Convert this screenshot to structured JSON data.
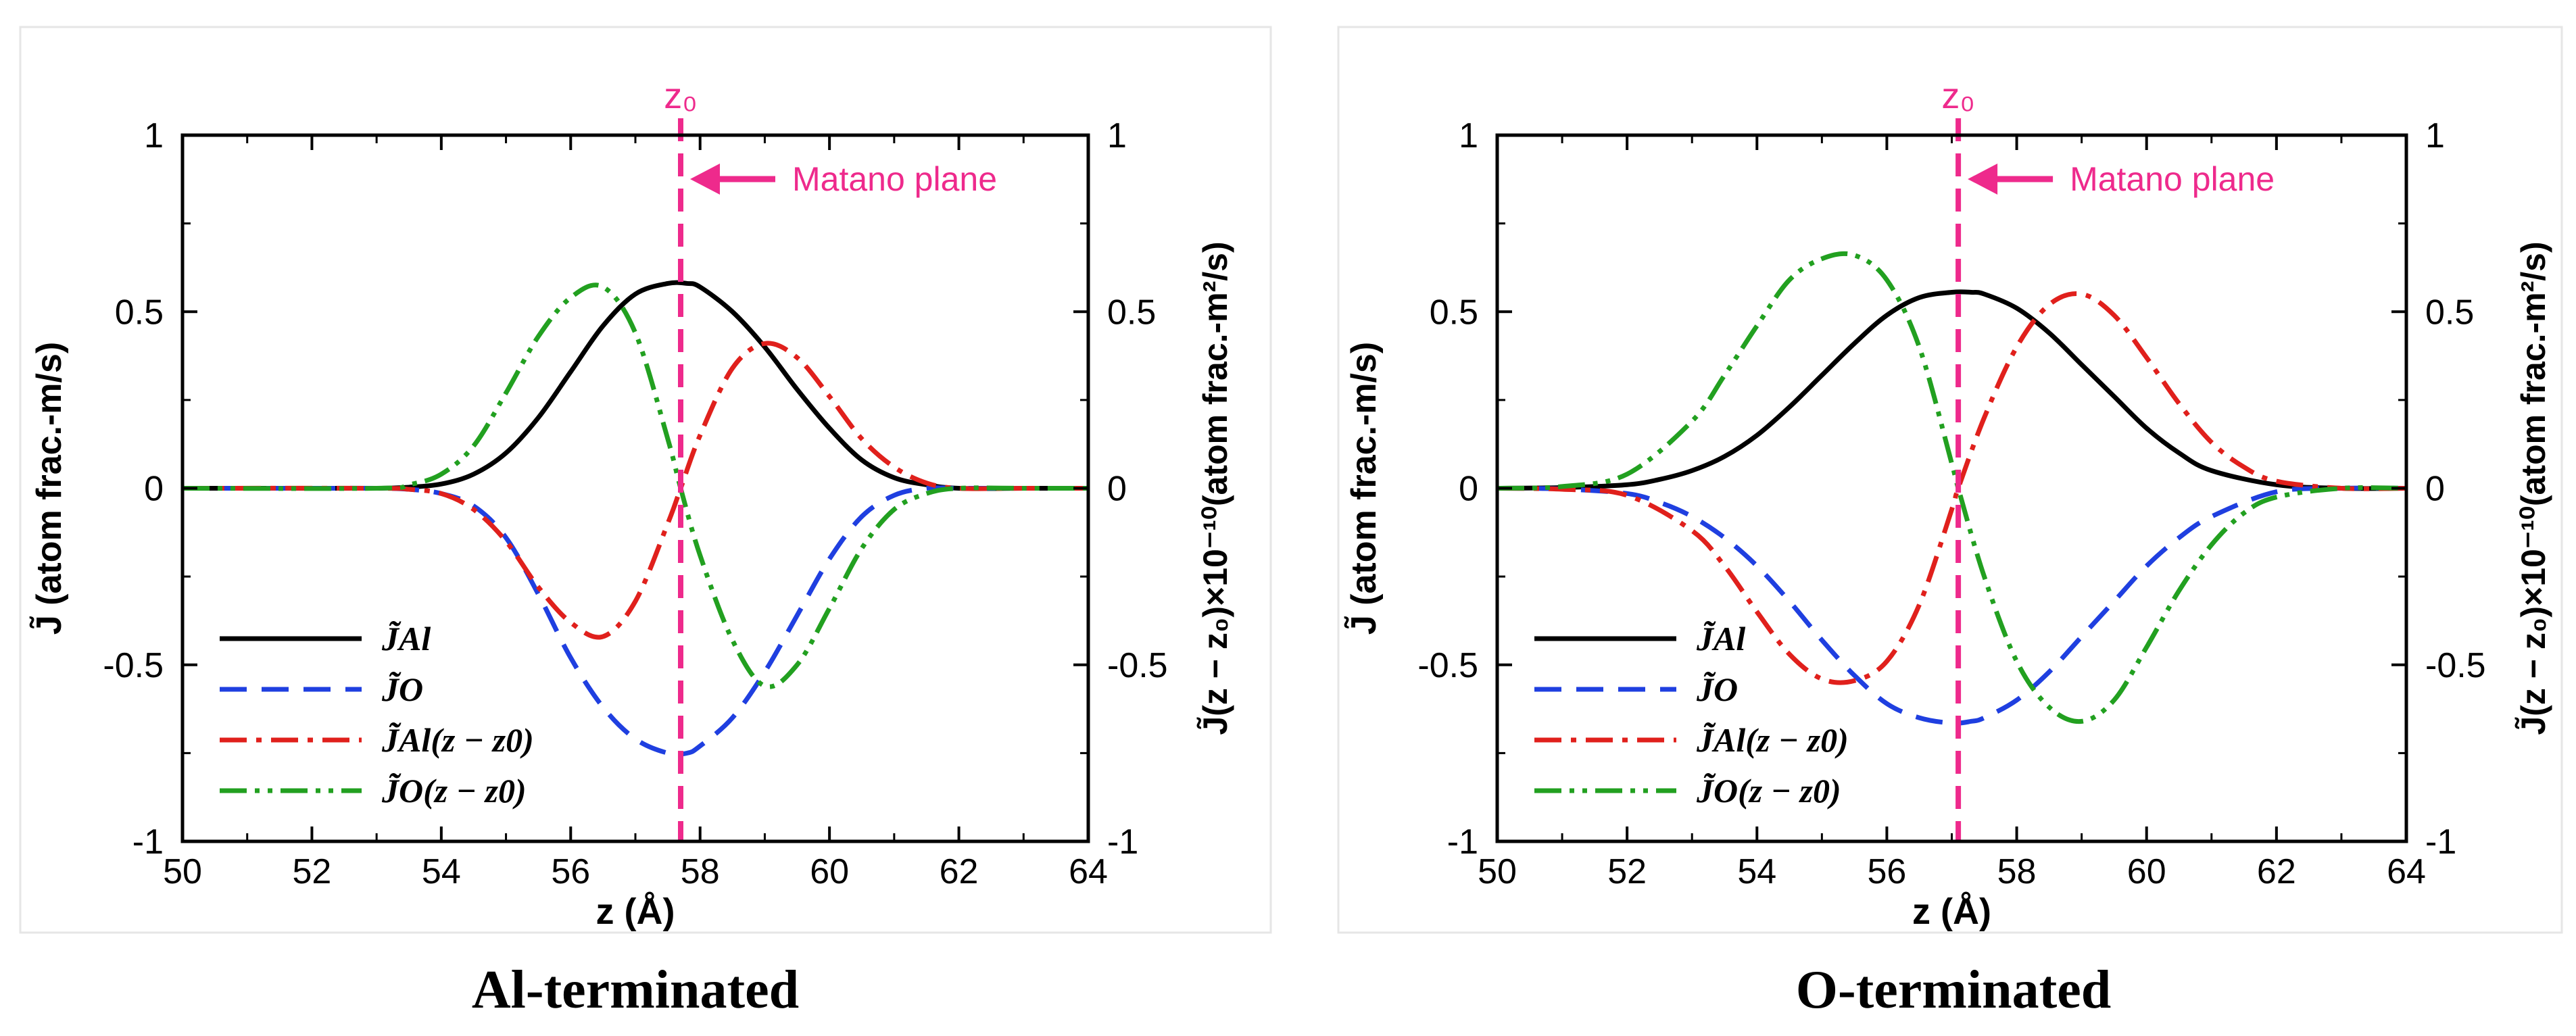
{
  "chart_data": [
    {
      "type": "line",
      "title": "",
      "caption": "Al-terminated",
      "xlabel": "z (Å)",
      "ylabel_left": "J̃ (atom frac.-m/s)",
      "ylabel_right": "J̃(z − z₀)×10⁻¹⁰(atom frac.-m²/s)",
      "xlim": [
        50,
        64
      ],
      "ylim": [
        -1,
        1
      ],
      "x_ticks": [
        "50",
        "52",
        "54",
        "56",
        "58",
        "60",
        "62",
        "64"
      ],
      "y_ticks": [
        "-1",
        "-0.5",
        "0",
        "0.5",
        "1"
      ],
      "x0": 57.7,
      "x0_label": "z₀",
      "annotation": "Matano plane",
      "legend_position": "bottom-left",
      "series": [
        {
          "name": "J̃Al",
          "color": "#000000",
          "style": "solid",
          "x": [
            50,
            52,
            53,
            53.5,
            54,
            54.5,
            55,
            55.5,
            56,
            56.5,
            57,
            57.5,
            57.8,
            58,
            58.5,
            59,
            59.5,
            60,
            60.5,
            61,
            61.5,
            62,
            63,
            64
          ],
          "y": [
            0,
            0,
            0,
            0.003,
            0.012,
            0.04,
            0.1,
            0.2,
            0.33,
            0.46,
            0.55,
            0.58,
            0.58,
            0.57,
            0.5,
            0.4,
            0.28,
            0.17,
            0.08,
            0.03,
            0.01,
            0,
            0,
            0
          ]
        },
        {
          "name": "J̃O",
          "color": "#1f3fe0",
          "style": "dashed",
          "x": [
            50,
            52,
            53,
            53.5,
            54,
            54.5,
            55,
            55.5,
            56,
            56.5,
            57,
            57.5,
            57.8,
            58,
            58.5,
            59,
            59.5,
            60,
            60.5,
            61,
            61.5,
            62,
            63,
            64
          ],
          "y": [
            0,
            0,
            0,
            -0.003,
            -0.015,
            -0.05,
            -0.14,
            -0.3,
            -0.48,
            -0.62,
            -0.71,
            -0.75,
            -0.75,
            -0.73,
            -0.65,
            -0.52,
            -0.36,
            -0.2,
            -0.08,
            -0.02,
            0,
            0,
            0,
            0
          ]
        },
        {
          "name": "J̃Al(z − z0)",
          "color": "#e0201c",
          "style": "dashdot",
          "x": [
            50,
            53,
            53.5,
            54,
            54.5,
            55,
            55.5,
            56,
            56.5,
            57,
            57.5,
            57.7,
            58,
            58.5,
            59,
            59.5,
            60,
            60.5,
            61,
            61.5,
            62,
            63,
            64
          ],
          "y": [
            0,
            0,
            -0.003,
            -0.015,
            -0.06,
            -0.15,
            -0.28,
            -0.38,
            -0.42,
            -0.32,
            -0.1,
            0,
            0.15,
            0.34,
            0.41,
            0.37,
            0.26,
            0.14,
            0.06,
            0.015,
            0,
            0,
            0
          ]
        },
        {
          "name": "J̃O(z − z0)",
          "color": "#22a020",
          "style": "dashdotdot",
          "x": [
            50,
            53,
            53.5,
            54,
            54.5,
            55,
            55.5,
            56,
            56.5,
            57,
            57.5,
            57.7,
            58,
            58.5,
            59,
            59.5,
            60,
            60.5,
            61,
            61.5,
            62,
            63,
            64
          ],
          "y": [
            0,
            0,
            0.01,
            0.04,
            0.12,
            0.27,
            0.43,
            0.54,
            0.57,
            0.44,
            0.14,
            0,
            -0.19,
            -0.43,
            -0.56,
            -0.5,
            -0.34,
            -0.17,
            -0.06,
            -0.015,
            0,
            0,
            0
          ]
        }
      ]
    },
    {
      "type": "line",
      "title": "",
      "caption": "O-terminated",
      "xlabel": "z (Å)",
      "ylabel_left": "J̃ (atom frac.-m/s)",
      "ylabel_right": "J̃(z − z₀)×10⁻¹⁰(atom frac.-m²/s)",
      "xlim": [
        50,
        64
      ],
      "ylim": [
        -1,
        1
      ],
      "x_ticks": [
        "50",
        "52",
        "54",
        "56",
        "58",
        "60",
        "62",
        "64"
      ],
      "y_ticks": [
        "-1",
        "-0.5",
        "0",
        "0.5",
        "1"
      ],
      "x0": 57.1,
      "x0_label": "z₀",
      "annotation": "Matano plane",
      "legend_position": "bottom-left",
      "series": [
        {
          "name": "J̃Al",
          "color": "#000000",
          "style": "solid",
          "x": [
            50,
            51,
            52,
            52.5,
            53,
            53.5,
            54,
            54.5,
            55,
            55.5,
            56,
            56.5,
            57,
            57.3,
            57.5,
            58,
            58.5,
            59,
            59.5,
            60,
            60.5,
            61,
            62,
            63,
            64
          ],
          "y": [
            0,
            0.002,
            0.01,
            0.025,
            0.05,
            0.09,
            0.15,
            0.23,
            0.32,
            0.41,
            0.49,
            0.54,
            0.555,
            0.555,
            0.55,
            0.51,
            0.44,
            0.35,
            0.26,
            0.17,
            0.1,
            0.05,
            0.01,
            0,
            0
          ]
        },
        {
          "name": "J̃O",
          "color": "#1f3fe0",
          "style": "dashed",
          "x": [
            50,
            51,
            52,
            52.5,
            53,
            53.5,
            54,
            54.5,
            55,
            55.5,
            56,
            56.5,
            57,
            57.3,
            57.5,
            58,
            58.5,
            59,
            59.5,
            60,
            60.5,
            61,
            62,
            63,
            64
          ],
          "y": [
            0,
            -0.002,
            -0.015,
            -0.04,
            -0.08,
            -0.14,
            -0.22,
            -0.32,
            -0.43,
            -0.53,
            -0.61,
            -0.65,
            -0.665,
            -0.66,
            -0.65,
            -0.6,
            -0.52,
            -0.42,
            -0.32,
            -0.22,
            -0.14,
            -0.08,
            -0.01,
            0,
            0
          ]
        },
        {
          "name": "J̃Al(z − z0)",
          "color": "#e0201c",
          "style": "dashdot",
          "x": [
            50,
            51,
            52,
            53,
            53.5,
            54,
            54.5,
            55,
            55.5,
            56,
            56.5,
            57,
            57.1,
            57.5,
            58,
            58.5,
            59,
            59.5,
            60,
            60.5,
            61,
            61.5,
            62,
            63,
            64
          ],
          "y": [
            0,
            -0.003,
            -0.02,
            -0.12,
            -0.22,
            -0.35,
            -0.47,
            -0.54,
            -0.545,
            -0.49,
            -0.33,
            -0.06,
            0,
            0.2,
            0.4,
            0.52,
            0.55,
            0.49,
            0.37,
            0.24,
            0.13,
            0.06,
            0.02,
            0,
            0
          ]
        },
        {
          "name": "J̃O(z − z0)",
          "color": "#22a020",
          "style": "dashdotdot",
          "x": [
            50,
            51,
            52,
            53,
            53.5,
            54,
            54.5,
            55,
            55.5,
            56,
            56.5,
            57,
            57.1,
            57.5,
            58,
            58.5,
            59,
            59.5,
            60,
            60.5,
            61,
            61.5,
            62,
            63,
            64
          ],
          "y": [
            0,
            0.005,
            0.04,
            0.19,
            0.32,
            0.46,
            0.59,
            0.65,
            0.66,
            0.59,
            0.4,
            0.07,
            0,
            -0.25,
            -0.49,
            -0.62,
            -0.66,
            -0.6,
            -0.45,
            -0.29,
            -0.16,
            -0.07,
            -0.025,
            0,
            0
          ]
        }
      ]
    }
  ]
}
